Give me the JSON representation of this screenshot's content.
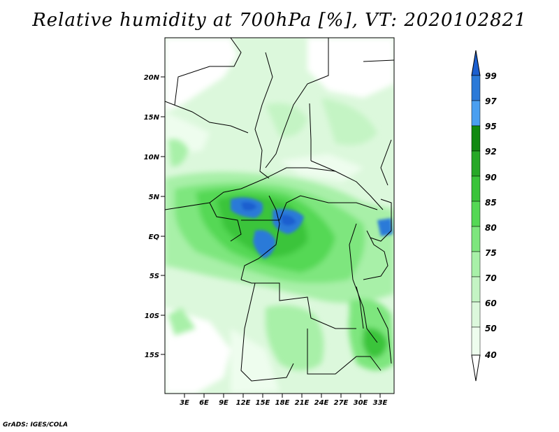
{
  "title": "Relative humidity at 700hPa [%], VT: 2020102821",
  "credit": "GrADS: IGES/COLA",
  "map": {
    "lat_labels": [
      "20N",
      "15N",
      "10N",
      "5N",
      "EQ",
      "5S",
      "10S",
      "15S"
    ],
    "lon_labels": [
      "3E",
      "6E",
      "9E",
      "12E",
      "15E",
      "18E",
      "21E",
      "24E",
      "27E",
      "30E",
      "33E"
    ]
  },
  "colorbar": {
    "labels": [
      "99",
      "97",
      "95",
      "92",
      "90",
      "85",
      "80",
      "75",
      "70",
      "60",
      "50",
      "40"
    ],
    "colors": [
      "#1c5fcf",
      "#2b7ad8",
      "#4a9ff0",
      "#118a11",
      "#27a827",
      "#3ac43a",
      "#55d855",
      "#7ee67e",
      "#a8f0a8",
      "#c4f4c4",
      "#dcf8dc",
      "#eefdee",
      "#ffffff"
    ]
  }
}
